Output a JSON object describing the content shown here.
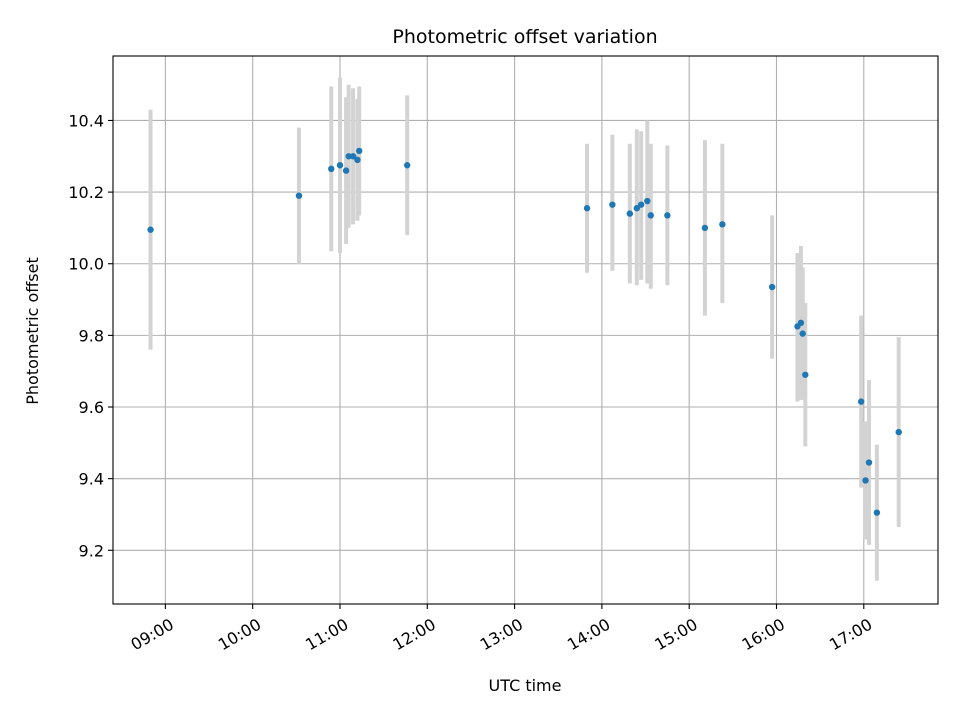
{
  "chart_data": {
    "type": "scatter",
    "title": "Photometric offset variation",
    "xlabel": "UTC time",
    "ylabel": "Photometric offset",
    "x_unit": "hours (UTC, decimal)",
    "xlim": [
      8.4,
      17.85
    ],
    "ylim": [
      9.05,
      10.58
    ],
    "x_ticks": [
      9,
      10,
      11,
      12,
      13,
      14,
      15,
      16,
      17
    ],
    "x_tick_labels": [
      "09:00",
      "10:00",
      "11:00",
      "12:00",
      "13:00",
      "14:00",
      "15:00",
      "16:00",
      "17:00"
    ],
    "y_ticks": [
      9.2,
      9.4,
      9.6,
      9.8,
      10.0,
      10.2,
      10.4
    ],
    "y_tick_labels": [
      "9.2",
      "9.4",
      "9.6",
      "9.8",
      "10.0",
      "10.2",
      "10.4"
    ],
    "grid": true,
    "point_color": "#1f77b4",
    "errorbar_color": "#d3d3d3",
    "points": [
      {
        "x": 8.83,
        "y": 10.095,
        "ylo": 9.76,
        "yhi": 10.43
      },
      {
        "x": 10.53,
        "y": 10.19,
        "ylo": 10.0,
        "yhi": 10.38
      },
      {
        "x": 10.9,
        "y": 10.265,
        "ylo": 10.035,
        "yhi": 10.495
      },
      {
        "x": 11.0,
        "y": 10.275,
        "ylo": 10.03,
        "yhi": 10.52
      },
      {
        "x": 11.07,
        "y": 10.26,
        "ylo": 10.055,
        "yhi": 10.465
      },
      {
        "x": 11.1,
        "y": 10.3,
        "ylo": 10.1,
        "yhi": 10.5
      },
      {
        "x": 11.15,
        "y": 10.3,
        "ylo": 10.11,
        "yhi": 10.49
      },
      {
        "x": 11.2,
        "y": 10.29,
        "ylo": 10.12,
        "yhi": 10.46
      },
      {
        "x": 11.22,
        "y": 10.315,
        "ylo": 10.135,
        "yhi": 10.495
      },
      {
        "x": 11.77,
        "y": 10.275,
        "ylo": 10.08,
        "yhi": 10.47
      },
      {
        "x": 13.83,
        "y": 10.155,
        "ylo": 9.975,
        "yhi": 10.335
      },
      {
        "x": 14.12,
        "y": 10.165,
        "ylo": 9.98,
        "yhi": 10.36
      },
      {
        "x": 14.32,
        "y": 10.14,
        "ylo": 9.945,
        "yhi": 10.335
      },
      {
        "x": 14.4,
        "y": 10.155,
        "ylo": 9.94,
        "yhi": 10.375
      },
      {
        "x": 14.45,
        "y": 10.165,
        "ylo": 9.955,
        "yhi": 10.37
      },
      {
        "x": 14.52,
        "y": 10.175,
        "ylo": 9.945,
        "yhi": 10.4
      },
      {
        "x": 14.56,
        "y": 10.135,
        "ylo": 9.93,
        "yhi": 10.335
      },
      {
        "x": 14.75,
        "y": 10.135,
        "ylo": 9.94,
        "yhi": 10.33
      },
      {
        "x": 15.18,
        "y": 10.1,
        "ylo": 9.855,
        "yhi": 10.345
      },
      {
        "x": 15.38,
        "y": 10.11,
        "ylo": 9.89,
        "yhi": 10.335
      },
      {
        "x": 15.95,
        "y": 9.935,
        "ylo": 9.735,
        "yhi": 10.135
      },
      {
        "x": 16.24,
        "y": 9.825,
        "ylo": 9.615,
        "yhi": 10.03
      },
      {
        "x": 16.28,
        "y": 9.835,
        "ylo": 9.62,
        "yhi": 10.05
      },
      {
        "x": 16.3,
        "y": 9.805,
        "ylo": 9.62,
        "yhi": 9.99
      },
      {
        "x": 16.33,
        "y": 9.69,
        "ylo": 9.49,
        "yhi": 9.89
      },
      {
        "x": 16.97,
        "y": 9.615,
        "ylo": 9.375,
        "yhi": 9.855
      },
      {
        "x": 17.02,
        "y": 9.395,
        "ylo": 9.23,
        "yhi": 9.56
      },
      {
        "x": 17.06,
        "y": 9.445,
        "ylo": 9.215,
        "yhi": 9.675
      },
      {
        "x": 17.15,
        "y": 9.305,
        "ylo": 9.115,
        "yhi": 9.495
      },
      {
        "x": 17.4,
        "y": 9.53,
        "ylo": 9.265,
        "yhi": 9.795
      }
    ]
  }
}
